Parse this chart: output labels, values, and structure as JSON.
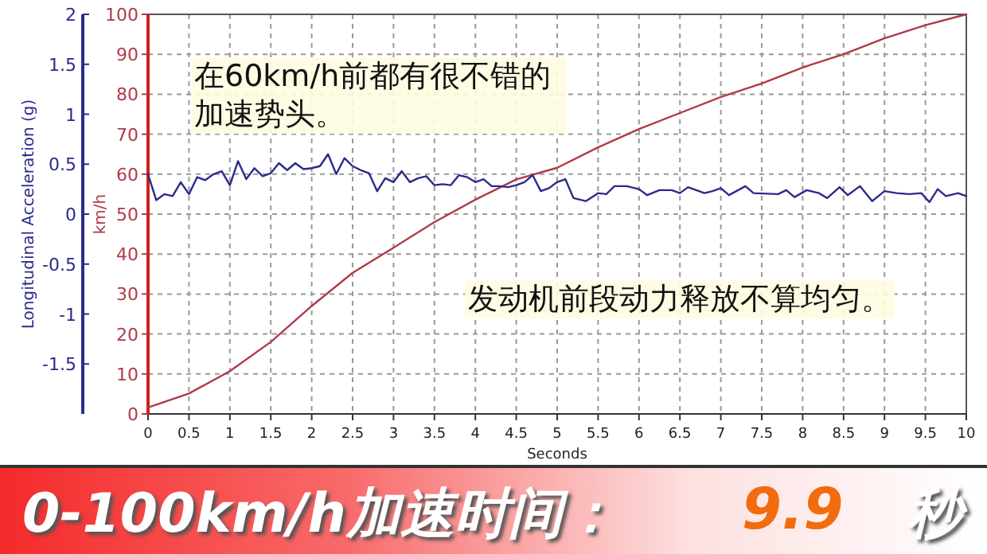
{
  "chart_data": {
    "type": "line",
    "xlabel": "Seconds",
    "ylabel": "km/h",
    "y2label": "Longitudinal Acceleration (g)",
    "xlim": [
      0,
      10
    ],
    "xticks": [
      0,
      0.5,
      1,
      1.5,
      2,
      2.5,
      3,
      3.5,
      4,
      4.5,
      5,
      5.5,
      6,
      6.5,
      7,
      7.5,
      8,
      8.5,
      9,
      9.5,
      10
    ],
    "ylim": [
      0,
      100
    ],
    "yticks": [
      0,
      10,
      20,
      30,
      40,
      50,
      60,
      70,
      80,
      90,
      100
    ],
    "y2lim": [
      -2,
      2
    ],
    "y2ticks": [
      -1.5,
      -1,
      -0.5,
      0,
      0.5,
      1,
      1.5,
      2
    ],
    "grid": true,
    "marker": "none",
    "line_style": "solid",
    "series": [
      {
        "color": "#b03a48",
        "x": [
          0,
          0.5,
          1,
          1.5,
          2,
          2.5,
          3,
          3.5,
          4,
          4.5,
          5,
          5.5,
          6,
          6.5,
          7,
          7.5,
          8,
          8.5,
          9,
          9.5,
          10
        ],
        "values": [
          1.6,
          5.1,
          10.7,
          18,
          27,
          35.3,
          41.6,
          48,
          53.6,
          58.7,
          61.6,
          66.7,
          71.3,
          75.3,
          79.3,
          82.7,
          86.7,
          90,
          94,
          97.3,
          100
        ]
      },
      {
        "color": "#2b2b8c",
        "axis": "y2",
        "x": [
          0,
          0.1,
          0.2,
          0.3,
          0.4,
          0.5,
          0.6,
          0.7,
          0.8,
          0.9,
          1,
          1.1,
          1.2,
          1.3,
          1.4,
          1.5,
          1.6,
          1.7,
          1.8,
          1.9,
          2,
          2.1,
          2.2,
          2.3,
          2.4,
          2.5,
          2.6,
          2.7,
          2.8,
          2.9,
          3,
          3.1,
          3.2,
          3.3,
          3.4,
          3.5,
          3.6,
          3.7,
          3.8,
          3.9,
          4,
          4.1,
          4.2,
          4.3,
          4.4,
          4.5,
          4.6,
          4.7,
          4.8,
          4.9,
          5,
          5.1,
          5.2,
          5.35,
          5.5,
          5.6,
          5.7,
          5.85,
          6,
          6.1,
          6.25,
          6.4,
          6.5,
          6.6,
          6.8,
          6.9,
          7,
          7.1,
          7.3,
          7.4,
          7.7,
          7.8,
          7.9,
          8.05,
          8.2,
          8.3,
          8.45,
          8.55,
          8.7,
          8.85,
          9,
          9.15,
          9.3,
          9.45,
          9.55,
          9.65,
          9.75,
          9.9,
          10
        ],
        "values": [
          0.4,
          0.14,
          0.2,
          0.18,
          0.32,
          0.2,
          0.37,
          0.34,
          0.4,
          0.43,
          0.29,
          0.53,
          0.35,
          0.46,
          0.38,
          0.41,
          0.51,
          0.44,
          0.51,
          0.45,
          0.46,
          0.48,
          0.6,
          0.4,
          0.56,
          0.48,
          0.44,
          0.41,
          0.23,
          0.36,
          0.32,
          0.43,
          0.32,
          0.36,
          0.38,
          0.29,
          0.3,
          0.29,
          0.39,
          0.37,
          0.32,
          0.35,
          0.28,
          0.28,
          0.27,
          0.29,
          0.32,
          0.39,
          0.23,
          0.26,
          0.32,
          0.35,
          0.16,
          0.13,
          0.21,
          0.2,
          0.28,
          0.28,
          0.25,
          0.19,
          0.24,
          0.24,
          0.21,
          0.27,
          0.21,
          0.23,
          0.26,
          0.19,
          0.28,
          0.21,
          0.2,
          0.24,
          0.17,
          0.24,
          0.21,
          0.16,
          0.27,
          0.19,
          0.28,
          0.13,
          0.23,
          0.21,
          0.2,
          0.21,
          0.12,
          0.25,
          0.18,
          0.21,
          0.18
        ]
      }
    ],
    "annotations": [
      "在60km/h前都有很不错的加速势头。",
      "发动机前段动力释放不算均匀。",
      "0-100km/h加速时间：",
      "9.9",
      "秒"
    ]
  }
}
